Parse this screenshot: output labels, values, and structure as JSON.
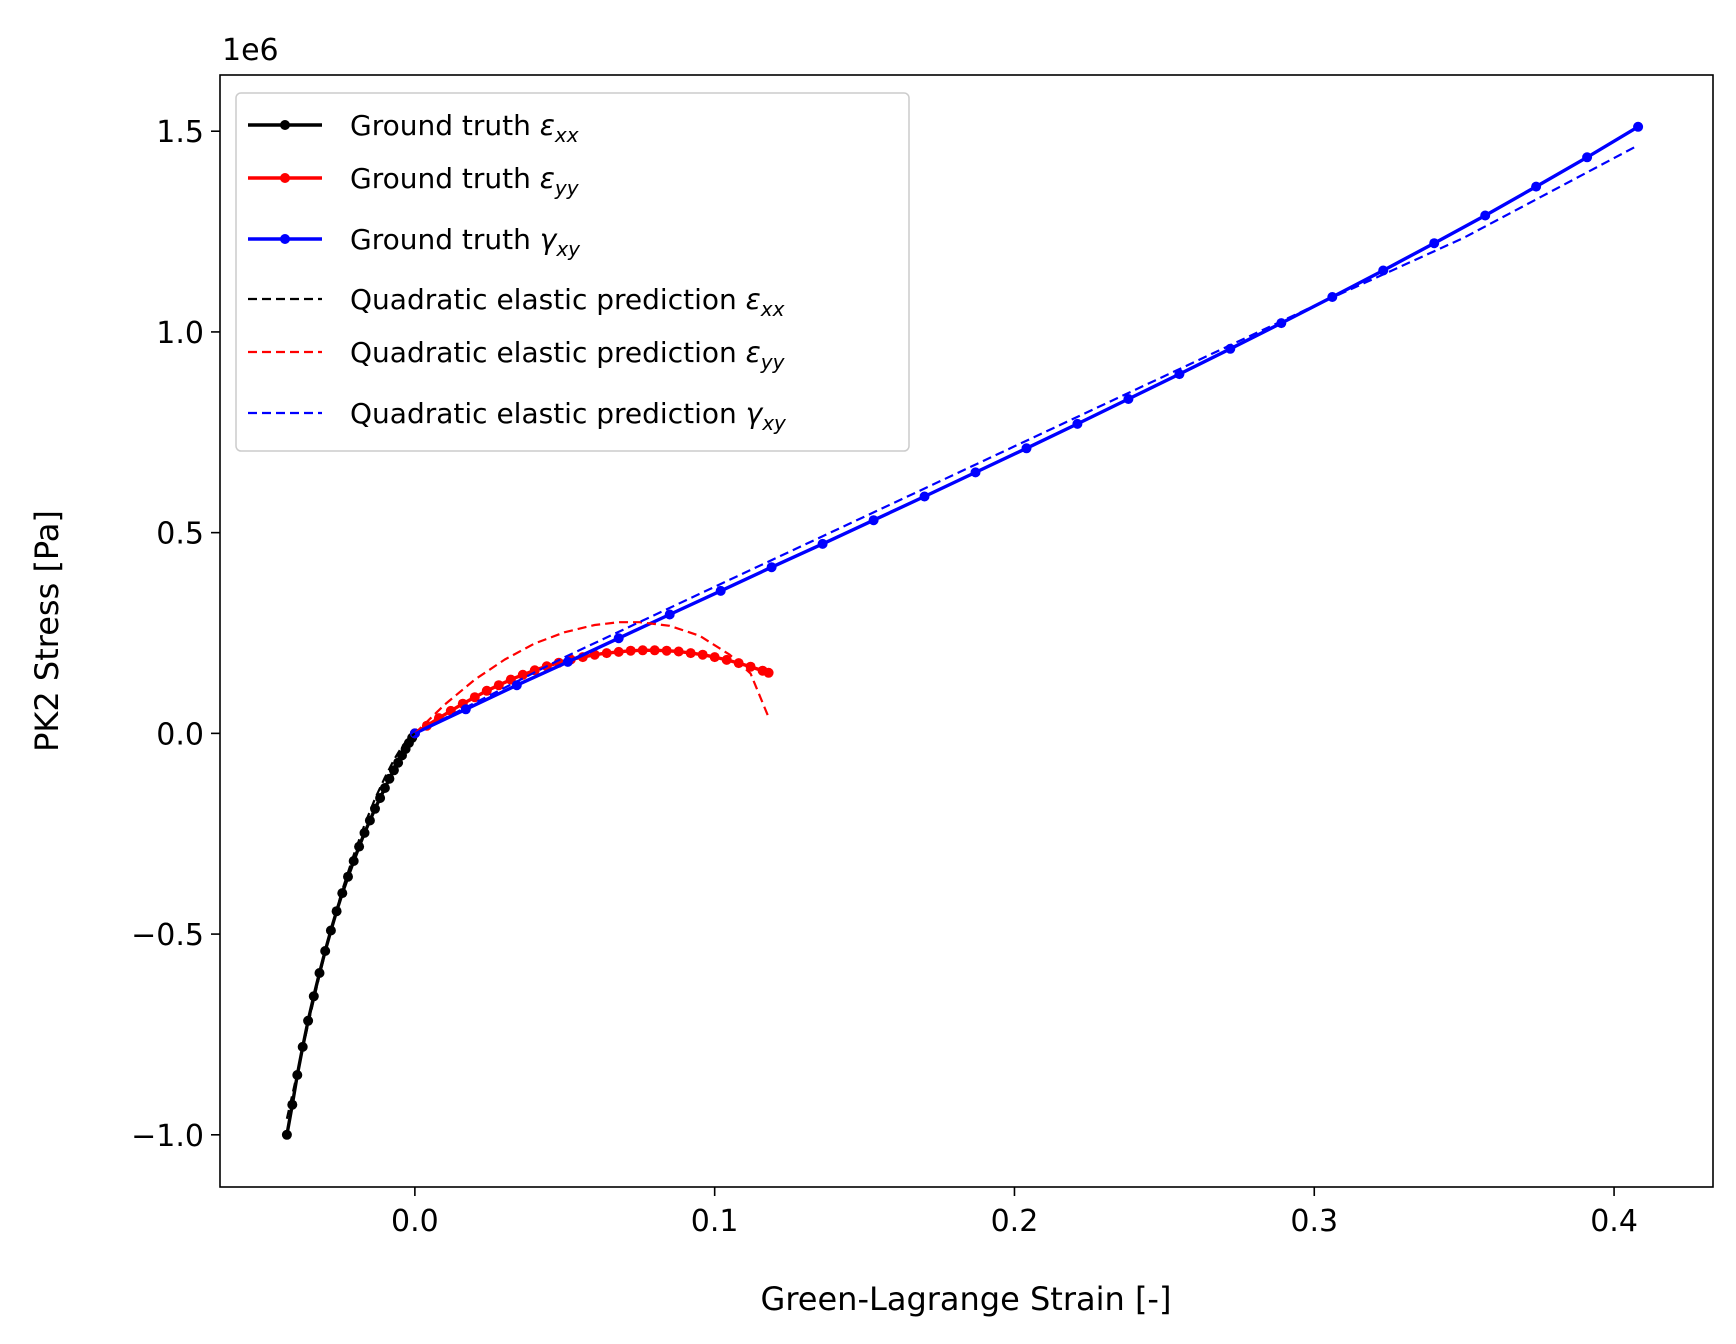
{
  "chart_data": {
    "type": "line",
    "xlabel": "Green-Lagrange Strain [-]",
    "ylabel": "PK2 Stress [Pa]",
    "y_offset_label": "1e6",
    "xlim": [
      -0.065,
      0.433
    ],
    "ylim": [
      -1.13,
      1.64
    ],
    "xticks": [
      0.0,
      0.1,
      0.2,
      0.3,
      0.4
    ],
    "xtick_labels": [
      "0.0",
      "0.1",
      "0.2",
      "0.3",
      "0.4"
    ],
    "yticks": [
      -1.0,
      -0.5,
      0.0,
      0.5,
      1.0,
      1.5
    ],
    "ytick_labels": [
      "−1.0",
      "−0.5",
      "0.0",
      "0.5",
      "1.0",
      "1.5"
    ],
    "y_multiplier": 1000000,
    "grid": false,
    "legend_position": "upper-left",
    "series": [
      {
        "name": "Ground truth",
        "symbol": "ε",
        "subscript": "xx",
        "color": "#000000",
        "style": "solid-markers",
        "points": [
          [
            -0.0427,
            -1.0
          ],
          [
            -0.0409,
            -0.925
          ],
          [
            -0.0392,
            -0.851
          ],
          [
            -0.0374,
            -0.781
          ],
          [
            -0.0356,
            -0.716
          ],
          [
            -0.0337,
            -0.655
          ],
          [
            -0.0318,
            -0.597
          ],
          [
            -0.0299,
            -0.542
          ],
          [
            -0.028,
            -0.491
          ],
          [
            -0.0261,
            -0.443
          ],
          [
            -0.0242,
            -0.398
          ],
          [
            -0.0223,
            -0.357
          ],
          [
            -0.0204,
            -0.318
          ],
          [
            -0.0186,
            -0.282
          ],
          [
            -0.0168,
            -0.248
          ],
          [
            -0.015,
            -0.217
          ],
          [
            -0.0133,
            -0.188
          ],
          [
            -0.0116,
            -0.161
          ],
          [
            -0.01,
            -0.136
          ],
          [
            -0.0085,
            -0.113
          ],
          [
            -0.007,
            -0.092
          ],
          [
            -0.0056,
            -0.073
          ],
          [
            -0.0043,
            -0.055
          ],
          [
            -0.0031,
            -0.039
          ],
          [
            -0.002,
            -0.024
          ],
          [
            -0.0009,
            -0.011
          ],
          [
            0.0,
            0.0
          ]
        ]
      },
      {
        "name": "Ground truth",
        "symbol": "ε",
        "subscript": "yy",
        "color": "#ff0000",
        "style": "solid-markers",
        "points": [
          [
            0.0,
            0.0
          ],
          [
            0.004,
            0.019
          ],
          [
            0.008,
            0.038
          ],
          [
            0.012,
            0.056
          ],
          [
            0.016,
            0.074
          ],
          [
            0.02,
            0.09
          ],
          [
            0.024,
            0.106
          ],
          [
            0.028,
            0.12
          ],
          [
            0.032,
            0.134
          ],
          [
            0.036,
            0.146
          ],
          [
            0.04,
            0.157
          ],
          [
            0.044,
            0.167
          ],
          [
            0.048,
            0.176
          ],
          [
            0.052,
            0.184
          ],
          [
            0.056,
            0.19
          ],
          [
            0.06,
            0.196
          ],
          [
            0.064,
            0.2
          ],
          [
            0.068,
            0.203
          ],
          [
            0.072,
            0.206
          ],
          [
            0.076,
            0.207
          ],
          [
            0.08,
            0.207
          ],
          [
            0.084,
            0.206
          ],
          [
            0.088,
            0.204
          ],
          [
            0.092,
            0.2
          ],
          [
            0.096,
            0.196
          ],
          [
            0.1,
            0.19
          ],
          [
            0.104,
            0.183
          ],
          [
            0.108,
            0.175
          ],
          [
            0.112,
            0.166
          ],
          [
            0.116,
            0.156
          ],
          [
            0.118,
            0.151
          ]
        ]
      },
      {
        "name": "Ground truth",
        "symbol": "γ",
        "subscript": "xy",
        "color": "#0000ff",
        "style": "solid-markers",
        "points": [
          [
            0.0,
            0.0
          ],
          [
            0.017,
            0.06
          ],
          [
            0.034,
            0.12
          ],
          [
            0.051,
            0.178
          ],
          [
            0.068,
            0.237
          ],
          [
            0.085,
            0.296
          ],
          [
            0.102,
            0.355
          ],
          [
            0.119,
            0.414
          ],
          [
            0.136,
            0.472
          ],
          [
            0.153,
            0.531
          ],
          [
            0.17,
            0.59
          ],
          [
            0.187,
            0.65
          ],
          [
            0.204,
            0.71
          ],
          [
            0.221,
            0.771
          ],
          [
            0.238,
            0.833
          ],
          [
            0.255,
            0.895
          ],
          [
            0.272,
            0.958
          ],
          [
            0.289,
            1.022
          ],
          [
            0.306,
            1.087
          ],
          [
            0.323,
            1.153
          ],
          [
            0.34,
            1.221
          ],
          [
            0.357,
            1.29
          ],
          [
            0.374,
            1.362
          ],
          [
            0.391,
            1.435
          ],
          [
            0.408,
            1.511
          ]
        ]
      },
      {
        "name": "Quadratic elastic prediction",
        "symbol": "ε",
        "subscript": "xx",
        "color": "#000000",
        "style": "dashed",
        "points": [
          [
            -0.0427,
            -0.96
          ],
          [
            -0.0392,
            -0.845
          ],
          [
            -0.0356,
            -0.725
          ],
          [
            -0.0318,
            -0.603
          ],
          [
            -0.028,
            -0.49
          ],
          [
            -0.0242,
            -0.39
          ],
          [
            -0.0204,
            -0.303
          ],
          [
            -0.0168,
            -0.228
          ],
          [
            -0.0133,
            -0.163
          ],
          [
            -0.01,
            -0.11
          ],
          [
            -0.007,
            -0.066
          ],
          [
            -0.0043,
            -0.033
          ],
          [
            -0.002,
            -0.012
          ],
          [
            0.0,
            0.0
          ]
        ]
      },
      {
        "name": "Quadratic elastic prediction",
        "symbol": "ε",
        "subscript": "yy",
        "color": "#ff0000",
        "style": "dashed",
        "points": [
          [
            0.0,
            0.0
          ],
          [
            0.01,
            0.072
          ],
          [
            0.02,
            0.134
          ],
          [
            0.03,
            0.184
          ],
          [
            0.04,
            0.224
          ],
          [
            0.05,
            0.252
          ],
          [
            0.06,
            0.27
          ],
          [
            0.068,
            0.277
          ],
          [
            0.075,
            0.277
          ],
          [
            0.085,
            0.268
          ],
          [
            0.095,
            0.243
          ],
          [
            0.105,
            0.196
          ],
          [
            0.112,
            0.149
          ],
          [
            0.118,
            0.04
          ]
        ]
      },
      {
        "name": "Quadratic elastic prediction",
        "symbol": "γ",
        "subscript": "xy",
        "color": "#0000ff",
        "style": "dashed",
        "points": [
          [
            0.0,
            0.0
          ],
          [
            0.05,
            0.19
          ],
          [
            0.1,
            0.365
          ],
          [
            0.15,
            0.54
          ],
          [
            0.2,
            0.715
          ],
          [
            0.25,
            0.89
          ],
          [
            0.3,
            1.065
          ],
          [
            0.35,
            1.235
          ],
          [
            0.408,
            1.465
          ]
        ]
      }
    ]
  }
}
